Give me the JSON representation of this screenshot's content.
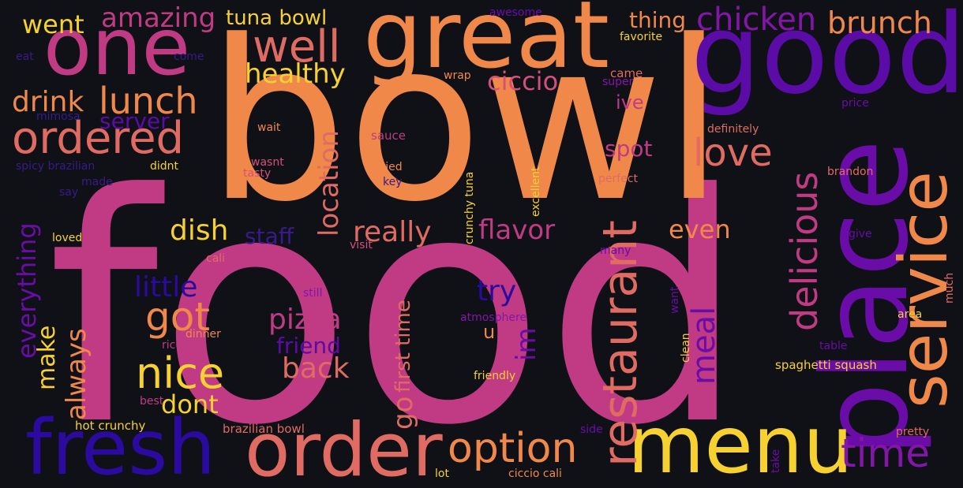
{
  "palette": {
    "background": "#0f1117",
    "magenta": "#c13b84",
    "orange": "#f0884a",
    "salmon": "#e06b63",
    "yellow": "#f6d130",
    "purple": "#8316a8",
    "violet": "#6a0ca7",
    "indigo": "#2b0aa0",
    "pink": "#d4507a",
    "dim": "#3a1a8a"
  },
  "words": {
    "food": "food",
    "bowl": "bowl",
    "place": "place",
    "good": "good",
    "great": "great",
    "service": "service",
    "one": "one",
    "fresh": "fresh",
    "order": "order",
    "menu": "menu",
    "restaurant": "restaurant",
    "delicious": "delicious",
    "ordered": "ordered",
    "well": "well",
    "time": "time",
    "option": "option",
    "love": "love",
    "nice": "nice",
    "got": "got",
    "lunch": "lunch",
    "chicken": "chicken",
    "brunch": "brunch",
    "amazing": "amazing",
    "went": "went",
    "drink": "drink",
    "healthy": "healthy",
    "ciccio": "ciccio",
    "location": "location",
    "really": "really",
    "flavor": "flavor",
    "dish": "dish",
    "pizza": "pizza",
    "back": "back",
    "meal": "meal",
    "little": "little",
    "everything": "everything",
    "make": "make",
    "always": "always",
    "dont": "dont",
    "friend": "friend",
    "first_time": "first time",
    "go": "go",
    "im": "im",
    "try": "try",
    "staff": "staff",
    "even": "even",
    "server": "server",
    "spot": "spot",
    "thing": "thing",
    "tuna_bowl": "tuna bowl",
    "ive": "ive",
    "u": "u",
    "awesome": "awesome",
    "favorite": "favorite",
    "came": "came",
    "wrap": "wrap",
    "super": "super",
    "price": "price",
    "definitely": "definitely",
    "brandon": "brandon",
    "perfect": "perfect",
    "excellent": "excellent",
    "crunchy_tuna": "crunchy tuna",
    "tried": "tried",
    "tasty": "tasty",
    "wasnt": "wasnt",
    "sauce": "sauce",
    "wait": "wait",
    "made": "made",
    "say": "say",
    "didnt": "didnt",
    "spicy_brazilian": "spicy brazilian",
    "mimosa": "mimosa",
    "eat": "eat",
    "come": "come",
    "loved": "loved",
    "cali": "cali",
    "visit": "visit",
    "still": "still",
    "atmosphere": "atmosphere",
    "dinner": "dinner",
    "rice": "rice",
    "best": "best",
    "hot_crunchy": "hot crunchy",
    "brazilian_bowl": "brazilian bowl",
    "friendly": "friendly",
    "lot": "lot",
    "ciccio_cali": "ciccio cali",
    "side": "side",
    "take": "take",
    "clean": "clean",
    "want": "want",
    "many": "many",
    "give": "give",
    "area": "area",
    "much": "much",
    "table": "table",
    "spaghetti_squash": "spaghetti squash",
    "pretty": "pretty",
    "key": "key"
  }
}
